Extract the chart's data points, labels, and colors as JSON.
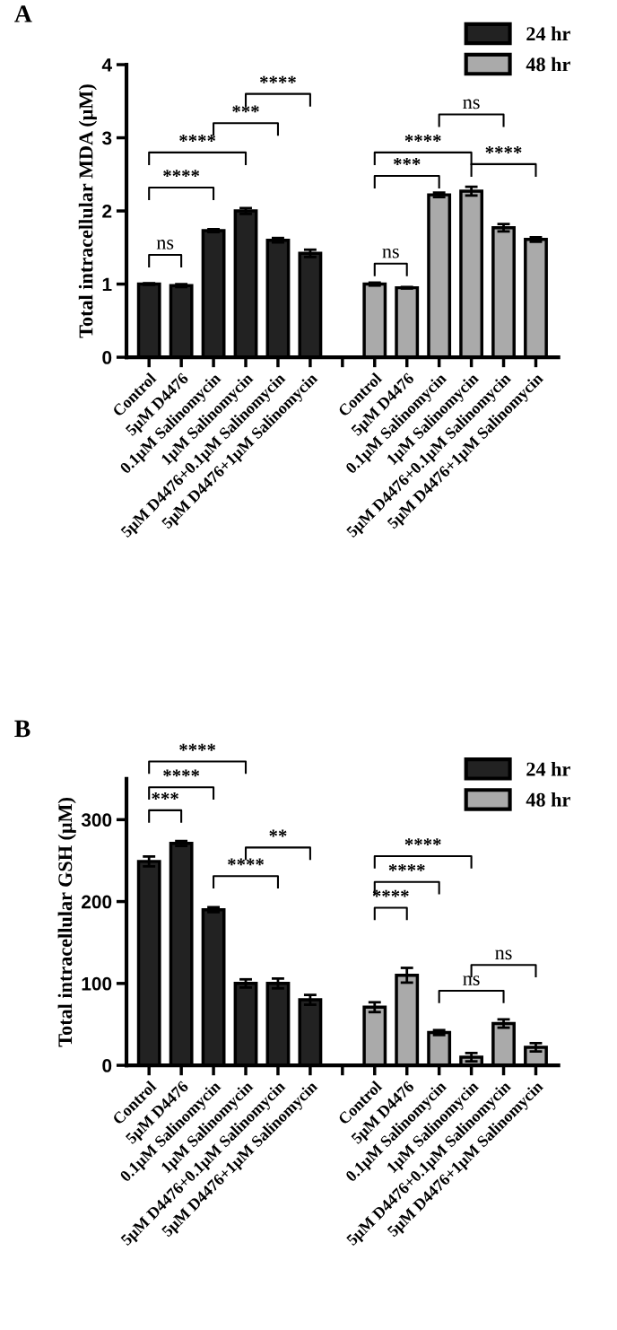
{
  "chart_data": [
    {
      "type": "bar",
      "title": "A",
      "ylabel": "Total intracellular MDA (μM)",
      "categories": [
        "Control",
        "5μM D4476",
        "0.1μM Salinomycin",
        "1μM Salinomycin",
        "5μM D4476+0.1μM Salinomycin",
        "5μM D4476+1μM Salinomycin",
        null,
        "Control",
        "5μM D4476",
        "0.1μM Salinomycin",
        "1μM Salinomycin",
        "5μM D4476+0.1μM Salinomycin",
        "5μM D4476+1μM Salinomycin"
      ],
      "series": [
        {
          "name": "24 hr",
          "color": "#222222",
          "values": [
            1.0,
            0.98,
            1.73,
            2.0,
            1.6,
            1.42,
            null,
            null,
            null,
            null,
            null,
            null,
            null
          ],
          "errors": [
            0.01,
            0.02,
            0.02,
            0.04,
            0.03,
            0.05,
            null,
            null,
            null,
            null,
            null,
            null,
            null
          ]
        },
        {
          "name": "48 hr",
          "color": "#aaaaaa",
          "values": [
            null,
            null,
            null,
            null,
            null,
            null,
            null,
            1.0,
            0.95,
            2.22,
            2.27,
            1.77,
            1.61
          ],
          "errors": [
            null,
            null,
            null,
            null,
            null,
            null,
            null,
            0.02,
            0.01,
            0.03,
            0.06,
            0.05,
            0.03
          ]
        }
      ],
      "ylim": [
        0,
        4
      ],
      "yticks": [
        0,
        1,
        2,
        3,
        4
      ],
      "grid": false,
      "legend": "top right",
      "annotations": [
        "ns",
        "****",
        "****",
        "***",
        "****",
        "ns",
        "***",
        "****",
        "****",
        "ns"
      ]
    },
    {
      "type": "bar",
      "title": "B",
      "ylabel": "Total intracellular GSH (μM)",
      "categories": [
        "Control",
        "5μM D4476",
        "0.1μM Salinomycin",
        "1μM Salinomycin",
        "5μM D4476+0.1μM Salinomycin",
        "5μM D4476+1μM Salinomycin",
        null,
        "Control",
        "5μM D4476",
        "0.1μM Salinomycin",
        "1μM Salinomycin",
        "5μM D4476+0.1μM Salinomycin",
        "5μM D4476+1μM Salinomycin"
      ],
      "series": [
        {
          "name": "24 hr",
          "color": "#222222",
          "values": [
            249,
            271,
            190,
            100,
            100,
            80,
            null,
            null,
            null,
            null,
            null,
            null,
            null
          ],
          "errors": [
            6,
            3,
            3,
            5,
            6,
            6,
            null,
            null,
            null,
            null,
            null,
            null,
            null
          ]
        },
        {
          "name": "48 hr",
          "color": "#aaaaaa",
          "values": [
            null,
            null,
            null,
            null,
            null,
            null,
            null,
            71,
            110,
            40,
            10,
            51,
            22
          ],
          "errors": [
            null,
            null,
            null,
            null,
            null,
            null,
            null,
            6,
            9,
            3,
            5,
            5,
            5
          ]
        }
      ],
      "ylim": [
        0,
        350
      ],
      "yticks": [
        0,
        100,
        200,
        300
      ],
      "grid": false,
      "legend": "top right",
      "annotations": [
        "***",
        "****",
        "****",
        "****",
        "**",
        "****",
        "****",
        "****",
        "ns",
        "ns"
      ]
    }
  ]
}
